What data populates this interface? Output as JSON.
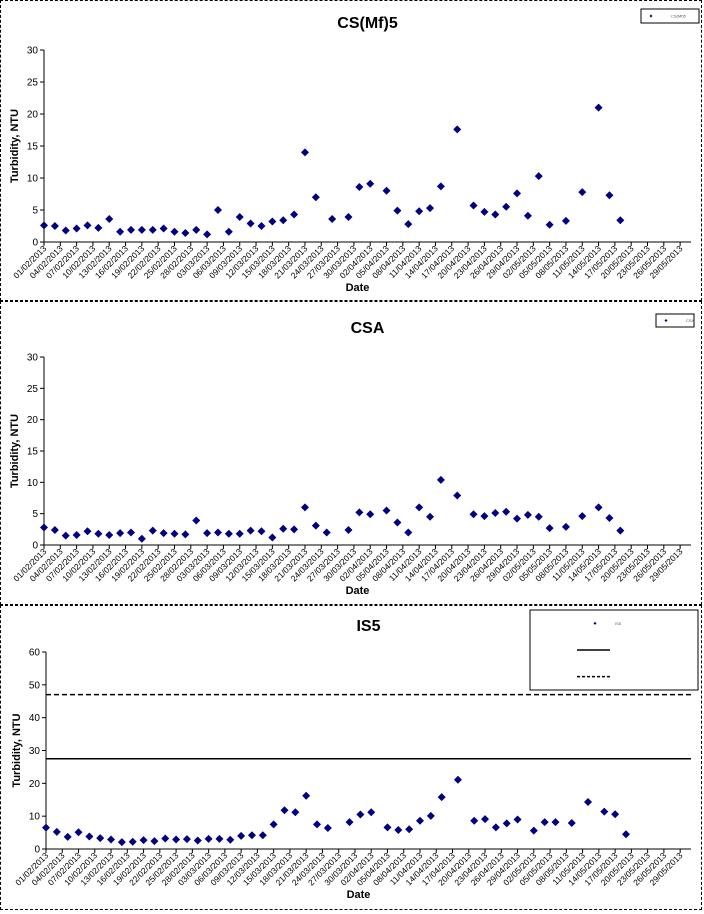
{
  "chart_data": [
    {
      "type": "scatter",
      "title": "CS(Mf)5",
      "xlabel": "Date",
      "ylabel": "Turbidity, NTU",
      "ylim": [
        0,
        30
      ],
      "yticks": [
        0,
        5,
        10,
        15,
        20,
        25,
        30
      ],
      "xlim": [
        "01/02/2013",
        "31/05/2013"
      ],
      "x_tick_labels": [
        "01/02/2013",
        "04/02/2013",
        "07/02/2013",
        "10/02/2013",
        "13/02/2013",
        "16/02/2013",
        "19/02/2013",
        "22/02/2013",
        "25/02/2013",
        "28/02/2013",
        "03/03/2013",
        "06/03/2013",
        "09/03/2013",
        "12/03/2013",
        "15/03/2013",
        "18/03/2013",
        "21/03/2013",
        "24/03/2013",
        "27/03/2013",
        "30/03/2013",
        "02/04/2013",
        "05/04/2013",
        "08/04/2013",
        "11/04/2013",
        "14/04/2013",
        "17/04/2013",
        "20/04/2013",
        "23/04/2013",
        "26/04/2013",
        "29/04/2013",
        "02/05/2013",
        "05/05/2013",
        "08/05/2013",
        "11/05/2013",
        "14/05/2013",
        "17/05/2013",
        "20/05/2013",
        "23/05/2013",
        "26/05/2013",
        "29/05/2013"
      ],
      "legend": {
        "position": "top-right",
        "entries": [
          "CS(Mf)5"
        ]
      },
      "grid": false,
      "series": [
        {
          "name": "CS(Mf)5",
          "marker": "diamond",
          "color": "#000080",
          "points": [
            {
              "x": "01/02/2013",
              "y": 2.6
            },
            {
              "x": "03/02/2013",
              "y": 2.5
            },
            {
              "x": "05/02/2013",
              "y": 1.8
            },
            {
              "x": "07/02/2013",
              "y": 2.1
            },
            {
              "x": "09/02/2013",
              "y": 2.6
            },
            {
              "x": "11/02/2013",
              "y": 2.2
            },
            {
              "x": "13/02/2013",
              "y": 3.6
            },
            {
              "x": "15/02/2013",
              "y": 1.6
            },
            {
              "x": "17/02/2013",
              "y": 1.9
            },
            {
              "x": "19/02/2013",
              "y": 1.9
            },
            {
              "x": "21/02/2013",
              "y": 1.9
            },
            {
              "x": "23/02/2013",
              "y": 2.1
            },
            {
              "x": "25/02/2013",
              "y": 1.6
            },
            {
              "x": "27/02/2013",
              "y": 1.4
            },
            {
              "x": "01/03/2013",
              "y": 1.9
            },
            {
              "x": "03/03/2013",
              "y": 1.2
            },
            {
              "x": "05/03/2013",
              "y": 5.0
            },
            {
              "x": "07/03/2013",
              "y": 1.6
            },
            {
              "x": "09/03/2013",
              "y": 3.9
            },
            {
              "x": "11/03/2013",
              "y": 2.9
            },
            {
              "x": "13/03/2013",
              "y": 2.5
            },
            {
              "x": "15/03/2013",
              "y": 3.2
            },
            {
              "x": "17/03/2013",
              "y": 3.4
            },
            {
              "x": "19/03/2013",
              "y": 4.3
            },
            {
              "x": "21/03/2013",
              "y": 14.0
            },
            {
              "x": "23/03/2013",
              "y": 7.0
            },
            {
              "x": "26/03/2013",
              "y": 3.6
            },
            {
              "x": "29/03/2013",
              "y": 3.9
            },
            {
              "x": "31/03/2013",
              "y": 8.6
            },
            {
              "x": "02/04/2013",
              "y": 9.1
            },
            {
              "x": "05/04/2013",
              "y": 8.0
            },
            {
              "x": "07/04/2013",
              "y": 4.9
            },
            {
              "x": "09/04/2013",
              "y": 2.8
            },
            {
              "x": "11/04/2013",
              "y": 4.8
            },
            {
              "x": "13/04/2013",
              "y": 5.3
            },
            {
              "x": "15/04/2013",
              "y": 8.7
            },
            {
              "x": "18/04/2013",
              "y": 17.6
            },
            {
              "x": "21/04/2013",
              "y": 5.7
            },
            {
              "x": "23/04/2013",
              "y": 4.7
            },
            {
              "x": "25/04/2013",
              "y": 4.3
            },
            {
              "x": "27/04/2013",
              "y": 5.5
            },
            {
              "x": "29/04/2013",
              "y": 7.6
            },
            {
              "x": "01/05/2013",
              "y": 4.1
            },
            {
              "x": "03/05/2013",
              "y": 10.3
            },
            {
              "x": "05/05/2013",
              "y": 2.7
            },
            {
              "x": "08/05/2013",
              "y": 3.3
            },
            {
              "x": "11/05/2013",
              "y": 7.8
            },
            {
              "x": "14/05/2013",
              "y": 21.0
            },
            {
              "x": "16/05/2013",
              "y": 7.3
            },
            {
              "x": "18/05/2013",
              "y": 3.4
            }
          ]
        }
      ]
    },
    {
      "type": "scatter",
      "title": "CSA",
      "xlabel": "Date",
      "ylabel": "Turbidity, NTU",
      "ylim": [
        0,
        30
      ],
      "yticks": [
        0,
        5,
        10,
        15,
        20,
        25,
        30
      ],
      "xlim": [
        "01/02/2013",
        "31/05/2013"
      ],
      "x_tick_labels": [
        "01/02/2013",
        "04/02/2013",
        "07/02/2013",
        "10/02/2013",
        "13/02/2013",
        "16/02/2013",
        "19/02/2013",
        "22/02/2013",
        "25/02/2013",
        "28/02/2013",
        "03/03/2013",
        "06/03/2013",
        "09/03/2013",
        "12/03/2013",
        "15/03/2013",
        "18/03/2013",
        "21/03/2013",
        "24/03/2013",
        "27/03/2013",
        "30/03/2013",
        "02/04/2013",
        "05/04/2013",
        "08/04/2013",
        "11/04/2013",
        "14/04/2013",
        "17/04/2013",
        "20/04/2013",
        "23/04/2013",
        "26/04/2013",
        "29/04/2013",
        "02/05/2013",
        "05/05/2013",
        "08/05/2013",
        "11/05/2013",
        "14/05/2013",
        "17/05/2013",
        "20/05/2013",
        "23/05/2013",
        "26/05/2013",
        "29/05/2013"
      ],
      "legend": {
        "position": "top-right",
        "entries": [
          "CSA"
        ]
      },
      "grid": false,
      "series": [
        {
          "name": "CSA",
          "marker": "diamond",
          "color": "#000080",
          "points": [
            {
              "x": "01/02/2013",
              "y": 2.8
            },
            {
              "x": "03/02/2013",
              "y": 2.4
            },
            {
              "x": "05/02/2013",
              "y": 1.5
            },
            {
              "x": "07/02/2013",
              "y": 1.6
            },
            {
              "x": "09/02/2013",
              "y": 2.2
            },
            {
              "x": "11/02/2013",
              "y": 1.8
            },
            {
              "x": "13/02/2013",
              "y": 1.6
            },
            {
              "x": "15/02/2013",
              "y": 1.9
            },
            {
              "x": "17/02/2013",
              "y": 2.0
            },
            {
              "x": "19/02/2013",
              "y": 1.0
            },
            {
              "x": "21/02/2013",
              "y": 2.3
            },
            {
              "x": "23/02/2013",
              "y": 1.9
            },
            {
              "x": "25/02/2013",
              "y": 1.8
            },
            {
              "x": "27/02/2013",
              "y": 1.7
            },
            {
              "x": "01/03/2013",
              "y": 3.9
            },
            {
              "x": "03/03/2013",
              "y": 1.9
            },
            {
              "x": "05/03/2013",
              "y": 2.0
            },
            {
              "x": "07/03/2013",
              "y": 1.8
            },
            {
              "x": "09/03/2013",
              "y": 1.8
            },
            {
              "x": "11/03/2013",
              "y": 2.3
            },
            {
              "x": "13/03/2013",
              "y": 2.2
            },
            {
              "x": "15/03/2013",
              "y": 1.2
            },
            {
              "x": "17/03/2013",
              "y": 2.6
            },
            {
              "x": "19/03/2013",
              "y": 2.5
            },
            {
              "x": "21/03/2013",
              "y": 6.0
            },
            {
              "x": "23/03/2013",
              "y": 3.1
            },
            {
              "x": "25/03/2013",
              "y": 2.0
            },
            {
              "x": "29/03/2013",
              "y": 2.4
            },
            {
              "x": "31/03/2013",
              "y": 5.2
            },
            {
              "x": "02/04/2013",
              "y": 4.9
            },
            {
              "x": "05/04/2013",
              "y": 5.5
            },
            {
              "x": "07/04/2013",
              "y": 3.6
            },
            {
              "x": "09/04/2013",
              "y": 2.0
            },
            {
              "x": "11/04/2013",
              "y": 6.0
            },
            {
              "x": "13/04/2013",
              "y": 4.5
            },
            {
              "x": "15/04/2013",
              "y": 10.4
            },
            {
              "x": "18/04/2013",
              "y": 7.9
            },
            {
              "x": "21/04/2013",
              "y": 4.9
            },
            {
              "x": "23/04/2013",
              "y": 4.6
            },
            {
              "x": "25/04/2013",
              "y": 5.1
            },
            {
              "x": "27/04/2013",
              "y": 5.3
            },
            {
              "x": "29/04/2013",
              "y": 4.2
            },
            {
              "x": "01/05/2013",
              "y": 4.8
            },
            {
              "x": "03/05/2013",
              "y": 4.5
            },
            {
              "x": "05/05/2013",
              "y": 2.7
            },
            {
              "x": "08/05/2013",
              "y": 2.9
            },
            {
              "x": "11/05/2013",
              "y": 4.6
            },
            {
              "x": "14/05/2013",
              "y": 6.0
            },
            {
              "x": "16/05/2013",
              "y": 4.3
            },
            {
              "x": "18/05/2013",
              "y": 2.3
            }
          ]
        }
      ]
    },
    {
      "type": "scatter",
      "title": "IS5",
      "xlabel": "Date",
      "ylabel": "Turbidity, NTU",
      "ylim": [
        0,
        60
      ],
      "yticks": [
        0,
        10,
        20,
        30,
        40,
        50,
        60
      ],
      "xlim": [
        "01/02/2013",
        "31/05/2013"
      ],
      "x_tick_labels": [
        "01/02/2013",
        "04/02/2013",
        "07/02/2013",
        "10/02/2013",
        "13/02/2013",
        "16/02/2013",
        "19/02/2013",
        "22/02/2013",
        "25/02/2013",
        "28/02/2013",
        "03/03/2013",
        "06/03/2013",
        "09/03/2013",
        "12/03/2013",
        "15/03/2013",
        "18/03/2013",
        "21/03/2013",
        "24/03/2013",
        "27/03/2013",
        "30/03/2013",
        "02/04/2013",
        "05/04/2013",
        "08/04/2013",
        "11/04/2013",
        "14/04/2013",
        "17/04/2013",
        "20/04/2013",
        "23/04/2013",
        "26/04/2013",
        "29/04/2013",
        "02/05/2013",
        "05/05/2013",
        "08/05/2013",
        "11/05/2013",
        "14/05/2013",
        "17/05/2013",
        "20/05/2013",
        "23/05/2013",
        "26/05/2013",
        "29/05/2013"
      ],
      "legend": {
        "position": "top-right",
        "entries": [
          "IS5"
        ]
      },
      "grid": false,
      "reference_lines": [
        {
          "value": 27.5,
          "style": "solid",
          "color": "#000000"
        },
        {
          "value": 47,
          "style": "dashed",
          "color": "#000000"
        }
      ],
      "series": [
        {
          "name": "IS5",
          "marker": "diamond",
          "color": "#000080",
          "points": [
            {
              "x": "01/02/2013",
              "y": 6.5
            },
            {
              "x": "03/02/2013",
              "y": 5.2
            },
            {
              "x": "05/02/2013",
              "y": 3.7
            },
            {
              "x": "07/02/2013",
              "y": 5.1
            },
            {
              "x": "09/02/2013",
              "y": 3.8
            },
            {
              "x": "11/02/2013",
              "y": 3.3
            },
            {
              "x": "13/02/2013",
              "y": 2.9
            },
            {
              "x": "15/02/2013",
              "y": 2.1
            },
            {
              "x": "17/02/2013",
              "y": 2.2
            },
            {
              "x": "19/02/2013",
              "y": 2.7
            },
            {
              "x": "21/02/2013",
              "y": 2.4
            },
            {
              "x": "23/02/2013",
              "y": 3.2
            },
            {
              "x": "25/02/2013",
              "y": 2.9
            },
            {
              "x": "27/02/2013",
              "y": 3.0
            },
            {
              "x": "01/03/2013",
              "y": 2.6
            },
            {
              "x": "03/03/2013",
              "y": 3.1
            },
            {
              "x": "05/03/2013",
              "y": 3.1
            },
            {
              "x": "07/03/2013",
              "y": 2.8
            },
            {
              "x": "09/03/2013",
              "y": 4.0
            },
            {
              "x": "11/03/2013",
              "y": 4.2
            },
            {
              "x": "13/03/2013",
              "y": 4.2
            },
            {
              "x": "15/03/2013",
              "y": 7.5
            },
            {
              "x": "17/03/2013",
              "y": 11.8
            },
            {
              "x": "19/03/2013",
              "y": 11.2
            },
            {
              "x": "21/03/2013",
              "y": 16.2
            },
            {
              "x": "23/03/2013",
              "y": 7.5
            },
            {
              "x": "25/03/2013",
              "y": 6.4
            },
            {
              "x": "29/03/2013",
              "y": 8.2
            },
            {
              "x": "31/03/2013",
              "y": 10.5
            },
            {
              "x": "02/04/2013",
              "y": 11.2
            },
            {
              "x": "05/04/2013",
              "y": 6.6
            },
            {
              "x": "07/04/2013",
              "y": 5.8
            },
            {
              "x": "09/04/2013",
              "y": 6.0
            },
            {
              "x": "11/04/2013",
              "y": 8.6
            },
            {
              "x": "13/04/2013",
              "y": 10.1
            },
            {
              "x": "15/04/2013",
              "y": 15.8
            },
            {
              "x": "18/04/2013",
              "y": 21.1
            },
            {
              "x": "21/04/2013",
              "y": 8.6
            },
            {
              "x": "23/04/2013",
              "y": 9.1
            },
            {
              "x": "25/04/2013",
              "y": 6.6
            },
            {
              "x": "27/04/2013",
              "y": 7.8
            },
            {
              "x": "29/04/2013",
              "y": 9.0
            },
            {
              "x": "02/05/2013",
              "y": 5.6
            },
            {
              "x": "04/05/2013",
              "y": 8.2
            },
            {
              "x": "06/05/2013",
              "y": 8.2
            },
            {
              "x": "09/05/2013",
              "y": 7.9
            },
            {
              "x": "12/05/2013",
              "y": 14.3
            },
            {
              "x": "15/05/2013",
              "y": 11.4
            },
            {
              "x": "17/05/2013",
              "y": 10.6
            },
            {
              "x": "19/05/2013",
              "y": 4.5
            }
          ]
        }
      ]
    }
  ]
}
